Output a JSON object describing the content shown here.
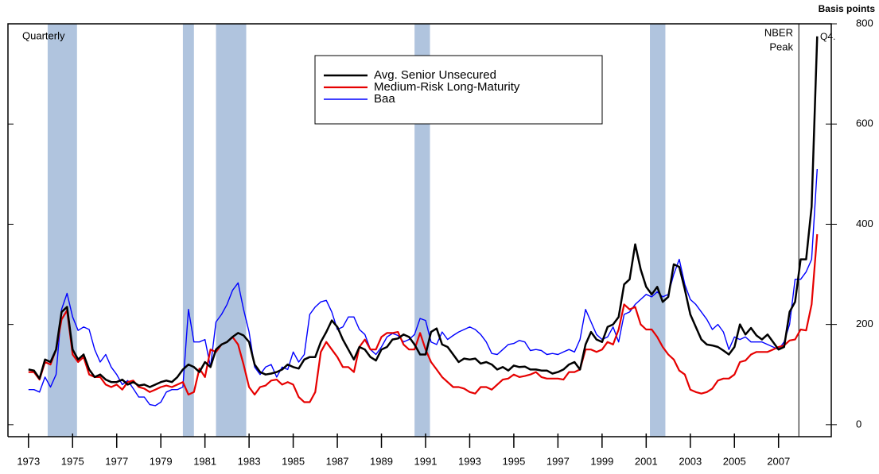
{
  "chart_data": {
    "type": "line",
    "frequency_label": "Quarterly",
    "y_axis_label": "Basis points",
    "nber_label": [
      "NBER",
      "Peak"
    ],
    "last_obs_label": "Q4.",
    "nber_peak": 2007.92,
    "shaded_periods": [
      [
        1973.87,
        1975.2
      ],
      [
        1980.0,
        1980.5
      ],
      [
        1981.5,
        1982.87
      ],
      [
        1990.5,
        1991.2
      ],
      [
        2001.17,
        2001.87
      ]
    ],
    "shade_color": "#b0c4de",
    "xlim": [
      1972.07,
      2009.39
    ],
    "ylim": [
      -24,
      800
    ],
    "xticks": [
      1973,
      1975,
      1977,
      1979,
      1981,
      1983,
      1985,
      1987,
      1989,
      1991,
      1993,
      1995,
      1997,
      1999,
      2001,
      2003,
      2005,
      2007
    ],
    "yticks": [
      0,
      200,
      400,
      600,
      800
    ],
    "x": [
      1973,
      1973.25,
      1973.5,
      1973.75,
      1974,
      1974.25,
      1974.5,
      1974.75,
      1975,
      1975.25,
      1975.5,
      1975.75,
      1976,
      1976.25,
      1976.5,
      1976.75,
      1977,
      1977.25,
      1977.5,
      1977.75,
      1978,
      1978.25,
      1978.5,
      1978.75,
      1979,
      1979.25,
      1979.5,
      1979.75,
      1980,
      1980.25,
      1980.5,
      1980.75,
      1981,
      1981.25,
      1981.5,
      1981.75,
      1982,
      1982.25,
      1982.5,
      1982.75,
      1983,
      1983.25,
      1983.5,
      1983.75,
      1984,
      1984.25,
      1984.5,
      1984.75,
      1985,
      1985.25,
      1985.5,
      1985.75,
      1986,
      1986.25,
      1986.5,
      1986.75,
      1987,
      1987.25,
      1987.5,
      1987.75,
      1988,
      1988.25,
      1988.5,
      1988.75,
      1989,
      1989.25,
      1989.5,
      1989.75,
      1990,
      1990.25,
      1990.5,
      1990.75,
      1991,
      1991.25,
      1991.5,
      1991.75,
      1992,
      1992.25,
      1992.5,
      1992.75,
      1993,
      1993.25,
      1993.5,
      1993.75,
      1994,
      1994.25,
      1994.5,
      1994.75,
      1995,
      1995.25,
      1995.5,
      1995.75,
      1996,
      1996.25,
      1996.5,
      1996.75,
      1997,
      1997.25,
      1997.5,
      1997.75,
      1998,
      1998.25,
      1998.5,
      1998.75,
      1999,
      1999.25,
      1999.5,
      1999.75,
      2000,
      2000.25,
      2000.5,
      2000.75,
      2001,
      2001.25,
      2001.5,
      2001.75,
      2002,
      2002.25,
      2002.5,
      2002.75,
      2003,
      2003.25,
      2003.5,
      2003.75,
      2004,
      2004.25,
      2004.5,
      2004.75,
      2005,
      2005.25,
      2005.5,
      2005.75,
      2006,
      2006.25,
      2006.5,
      2006.75,
      2007,
      2007.25,
      2007.5,
      2007.75,
      2008,
      2008.25,
      2008.5,
      2008.75
    ],
    "series": [
      {
        "name": "Avg. Senior Unsecured",
        "color": "#000000",
        "width": 2.5,
        "values": [
          110,
          108,
          92,
          130,
          125,
          150,
          225,
          235,
          150,
          130,
          140,
          110,
          95,
          100,
          90,
          85,
          85,
          90,
          80,
          85,
          78,
          80,
          75,
          80,
          85,
          88,
          85,
          95,
          110,
          120,
          115,
          105,
          125,
          115,
          150,
          160,
          165,
          175,
          183,
          178,
          165,
          120,
          105,
          100,
          102,
          105,
          110,
          120,
          115,
          112,
          130,
          135,
          135,
          165,
          185,
          208,
          195,
          170,
          150,
          130,
          155,
          150,
          135,
          128,
          150,
          155,
          170,
          172,
          180,
          175,
          160,
          140,
          140,
          185,
          192,
          160,
          155,
          140,
          125,
          132,
          130,
          132,
          122,
          125,
          120,
          110,
          115,
          108,
          118,
          115,
          116,
          110,
          110,
          108,
          108,
          102,
          105,
          110,
          120,
          125,
          110,
          160,
          185,
          170,
          165,
          195,
          200,
          215,
          280,
          290,
          360,
          310,
          275,
          260,
          275,
          245,
          255,
          320,
          315,
          270,
          220,
          195,
          170,
          160,
          158,
          155,
          148,
          140,
          155,
          200,
          180,
          193,
          178,
          170,
          180,
          165,
          150,
          155,
          225,
          245,
          330,
          330,
          435,
          775
        ]
      },
      {
        "name": "Medium-Risk Long-Maturity",
        "color": "#e60000",
        "width": 2.2,
        "values": [
          105,
          105,
          90,
          125,
          120,
          150,
          210,
          228,
          140,
          125,
          135,
          100,
          95,
          95,
          80,
          75,
          80,
          70,
          85,
          88,
          75,
          72,
          65,
          70,
          75,
          78,
          75,
          80,
          85,
          60,
          65,
          112,
          95,
          150,
          145,
          160,
          165,
          175,
          160,
          120,
          75,
          60,
          75,
          78,
          88,
          90,
          80,
          85,
          80,
          55,
          45,
          45,
          65,
          145,
          165,
          150,
          135,
          115,
          115,
          105,
          155,
          170,
          150,
          150,
          175,
          183,
          183,
          185,
          160,
          150,
          150,
          183,
          150,
          125,
          110,
          95,
          85,
          75,
          75,
          72,
          65,
          62,
          75,
          75,
          70,
          80,
          90,
          92,
          100,
          95,
          97,
          100,
          105,
          95,
          92,
          92,
          92,
          90,
          105,
          105,
          110,
          150,
          150,
          145,
          150,
          165,
          160,
          190,
          240,
          230,
          235,
          200,
          190,
          190,
          175,
          155,
          140,
          130,
          108,
          100,
          70,
          65,
          62,
          65,
          72,
          88,
          92,
          92,
          100,
          125,
          128,
          140,
          145,
          145,
          145,
          150,
          155,
          158,
          168,
          170,
          190,
          188,
          240,
          380
        ]
      },
      {
        "name": "Baa",
        "color": "#0000ff",
        "width": 1.4,
        "values": [
          70,
          70,
          65,
          95,
          75,
          100,
          230,
          262,
          215,
          188,
          195,
          190,
          150,
          125,
          140,
          115,
          100,
          80,
          88,
          72,
          55,
          55,
          40,
          38,
          45,
          65,
          70,
          70,
          75,
          230,
          165,
          165,
          170,
          115,
          205,
          220,
          240,
          268,
          283,
          230,
          185,
          115,
          100,
          115,
          120,
          95,
          115,
          110,
          145,
          125,
          140,
          220,
          235,
          245,
          248,
          225,
          190,
          195,
          215,
          215,
          190,
          180,
          150,
          140,
          155,
          175,
          182,
          178,
          165,
          170,
          180,
          212,
          208,
          165,
          160,
          185,
          170,
          178,
          185,
          190,
          195,
          190,
          180,
          165,
          142,
          140,
          150,
          160,
          162,
          168,
          165,
          148,
          150,
          148,
          140,
          142,
          140,
          145,
          150,
          145,
          170,
          230,
          205,
          180,
          170,
          175,
          195,
          165,
          220,
          225,
          240,
          250,
          260,
          255,
          265,
          255,
          260,
          300,
          330,
          280,
          250,
          240,
          225,
          210,
          190,
          200,
          185,
          150,
          175,
          170,
          175,
          165,
          165,
          165,
          160,
          155,
          150,
          165,
          200,
          290,
          290,
          305,
          330,
          510
        ]
      }
    ]
  }
}
